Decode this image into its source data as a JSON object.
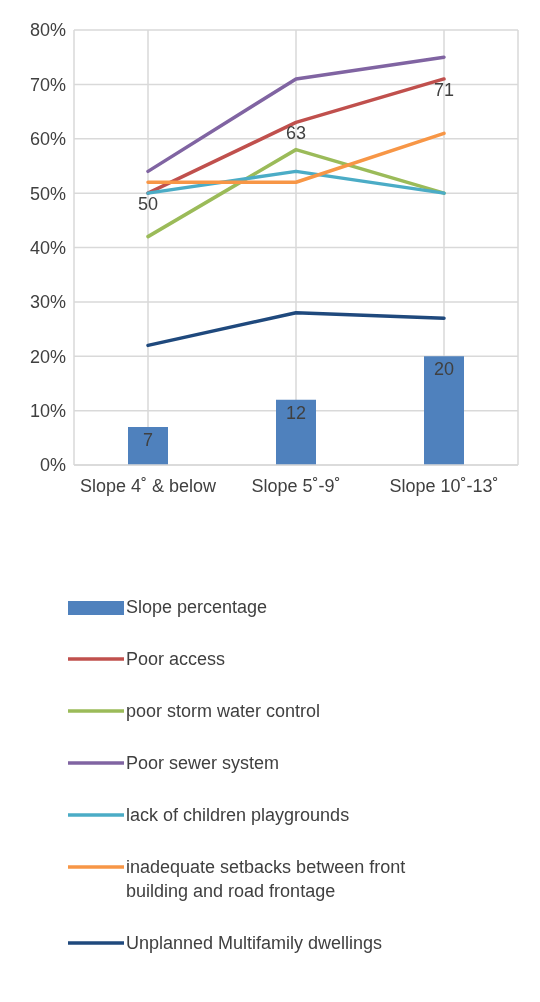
{
  "chart_data": {
    "type": "line",
    "categories": [
      "Slope 4˚ & below",
      "Slope 5˚-9˚",
      "Slope 10˚-13˚"
    ],
    "series": [
      {
        "name": "Slope percentage",
        "type": "bar",
        "color": "#4f81bd",
        "values": [
          7,
          12,
          20
        ],
        "value_labels": [
          "7",
          "12",
          "20"
        ]
      },
      {
        "name": "Poor access",
        "color": "#c0504d",
        "values": [
          50,
          63,
          71
        ],
        "value_labels": [
          "50",
          "63",
          "71"
        ]
      },
      {
        "name": "poor storm water control",
        "color": "#9bbb59",
        "values": [
          42,
          58,
          50
        ]
      },
      {
        "name": "Poor sewer system",
        "color": "#8064a2",
        "values": [
          54,
          71,
          75
        ]
      },
      {
        "name": "lack of children playgrounds",
        "color": "#4bacc6",
        "values": [
          50,
          54,
          50
        ]
      },
      {
        "name": "inadequate setbacks between front building and road frontage",
        "color": "#f79646",
        "values": [
          52,
          52,
          61
        ]
      },
      {
        "name": "Unplanned Multifamily dwellings",
        "color": "#1f497d",
        "values": [
          22,
          28,
          27
        ]
      }
    ],
    "ylim": [
      0,
      80
    ],
    "yticks": [
      {
        "value": 0,
        "label": "0%"
      },
      {
        "value": 10,
        "label": "10%"
      },
      {
        "value": 20,
        "label": "20%"
      },
      {
        "value": 30,
        "label": "30%"
      },
      {
        "value": 40,
        "label": "40%"
      },
      {
        "value": 50,
        "label": "50%"
      },
      {
        "value": 60,
        "label": "60%"
      },
      {
        "value": 70,
        "label": "70%"
      },
      {
        "value": 80,
        "label": "80%"
      }
    ],
    "grid": true,
    "legend": "bottom",
    "marker": "none"
  }
}
